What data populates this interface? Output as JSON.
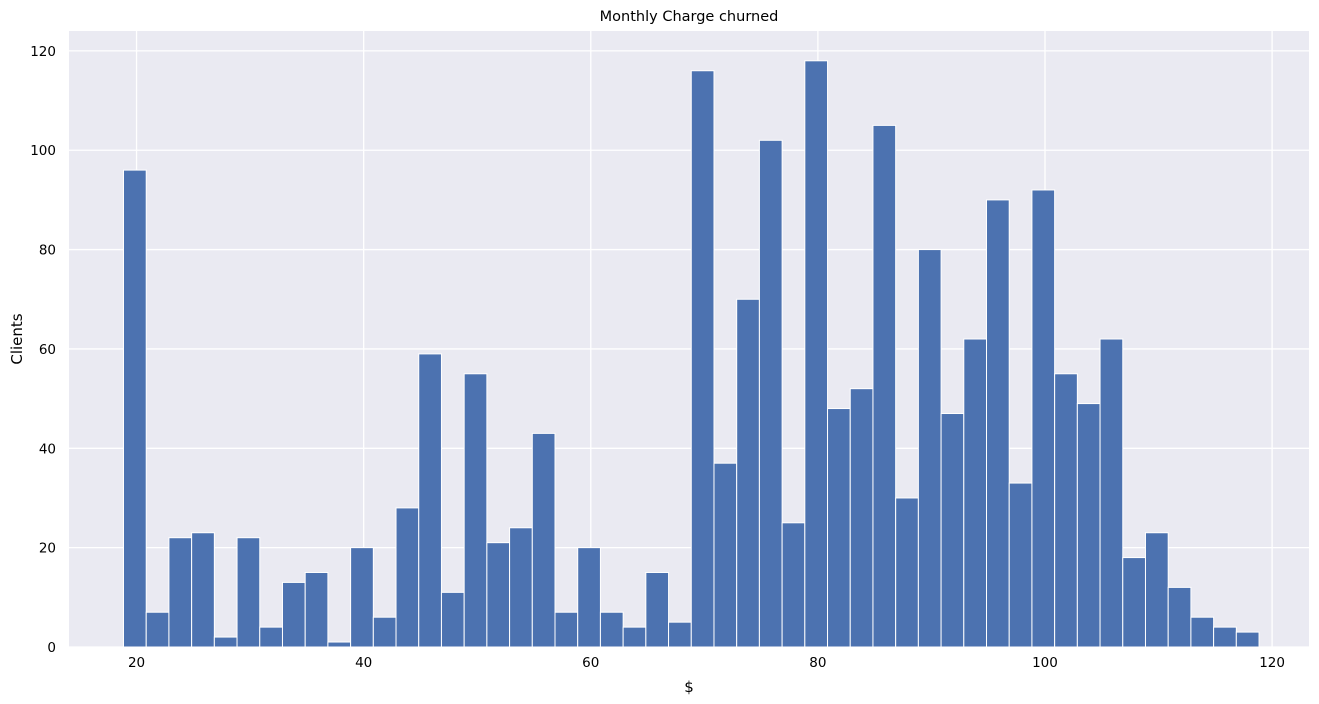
{
  "chart_data": {
    "type": "bar",
    "title": "Monthly Charge churned",
    "xlabel": "$",
    "ylabel": "Clients",
    "xlim": [
      14.05,
      123.25
    ],
    "ylim": [
      0,
      124
    ],
    "x_ticks": [
      20,
      40,
      60,
      80,
      100,
      120
    ],
    "y_ticks": [
      0,
      20,
      40,
      60,
      80,
      100,
      120
    ],
    "grid": true,
    "bin_start": 18.85,
    "bin_width": 2,
    "values": [
      96,
      7,
      22,
      23,
      2,
      22,
      4,
      13,
      15,
      1,
      20,
      6,
      28,
      59,
      11,
      55,
      21,
      24,
      43,
      7,
      20,
      7,
      4,
      15,
      5,
      116,
      37,
      70,
      102,
      25,
      118,
      48,
      52,
      105,
      30,
      80,
      47,
      62,
      90,
      33,
      92,
      55,
      49,
      62,
      18,
      23,
      12,
      6,
      4,
      3
    ],
    "colors": {
      "bar": "#4c72b0",
      "bar_edge": "#ffffff",
      "plot_bg": "#eaeaf2",
      "grid": "#ffffff"
    }
  }
}
